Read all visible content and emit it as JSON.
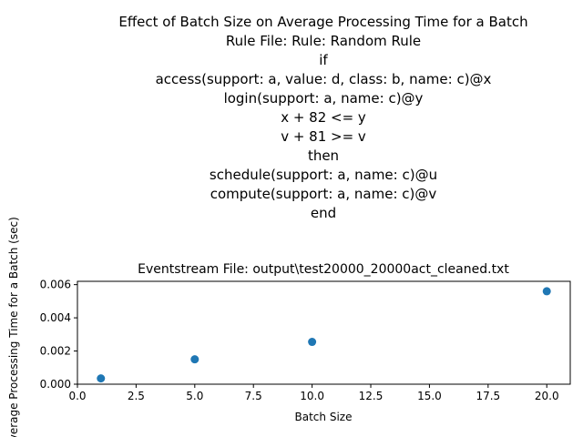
{
  "chart_data": {
    "type": "scatter",
    "title_lines": [
      "Effect of Batch Size on Average Processing Time for a Batch",
      "Rule File: Rule: Random Rule",
      "if",
      "access(support: a, value: d, class: b, name: c)@x",
      "login(support: a, name: c)@y",
      "x + 82 <= y",
      "v + 81 >= v",
      "then",
      "schedule(support: a, name: c)@u",
      "compute(support: a, name: c)@v",
      "end"
    ],
    "axes_title": "Eventstream File: output\\test20000_20000act_cleaned.txt",
    "xlabel": "Batch Size",
    "ylabel": "Average Processing Time for a Batch (sec)",
    "xlim": [
      0,
      21
    ],
    "ylim": [
      0,
      0.0062
    ],
    "xticks": [
      0.0,
      2.5,
      5.0,
      7.5,
      10.0,
      12.5,
      15.0,
      17.5,
      20.0
    ],
    "xtick_labels": [
      "0.0",
      "2.5",
      "5.0",
      "7.5",
      "10.0",
      "12.5",
      "15.0",
      "17.5",
      "20.0"
    ],
    "yticks": [
      0.0,
      0.002,
      0.004,
      0.006
    ],
    "ytick_labels": [
      "0.000",
      "0.002",
      "0.004",
      "0.006"
    ],
    "grid": false,
    "marker_color": "#1f77b4",
    "points": [
      {
        "x": 1,
        "y": 0.00035
      },
      {
        "x": 5,
        "y": 0.0015
      },
      {
        "x": 10,
        "y": 0.00255
      },
      {
        "x": 20,
        "y": 0.0056
      }
    ]
  }
}
